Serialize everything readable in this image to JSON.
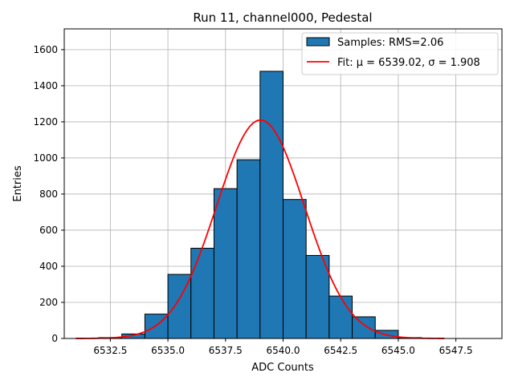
{
  "chart_data": {
    "type": "bar",
    "title": "Run 11, channel000, Pedestal",
    "xlabel": "ADC Counts",
    "ylabel": "Entries",
    "xlim": [
      6530.5,
      6549.5
    ],
    "ylim": [
      0,
      1715
    ],
    "xticks": [
      6532.5,
      6535.0,
      6537.5,
      6540.0,
      6542.5,
      6545.0,
      6547.5
    ],
    "xtick_labels": [
      "6532.5",
      "6535.0",
      "6537.5",
      "6540.0",
      "6542.5",
      "6545.0",
      "6547.5"
    ],
    "yticks": [
      0,
      200,
      400,
      600,
      800,
      1000,
      1200,
      1400,
      1600
    ],
    "ytick_labels": [
      "0",
      "200",
      "400",
      "600",
      "800",
      "1000",
      "1200",
      "1400",
      "1600"
    ],
    "grid": true,
    "legend_position": "top-right",
    "bins": {
      "edges": [
        6532,
        6533,
        6534,
        6535,
        6536,
        6537,
        6538,
        6539,
        6540,
        6541,
        6542,
        6543,
        6544,
        6545,
        6546
      ],
      "counts": [
        5,
        25,
        135,
        355,
        500,
        830,
        990,
        1480,
        770,
        460,
        235,
        120,
        45,
        5
      ]
    },
    "fit": {
      "mu": 6539.02,
      "sigma": 1.908,
      "amplitude": 1210,
      "x_range": [
        6531.0,
        6547.0
      ]
    },
    "series": [
      {
        "name": "Samples: RMS=2.06",
        "type": "histogram",
        "color": "#1f77b4",
        "edgecolor": "#000000"
      },
      {
        "name": "Fit: μ = 6539.02, σ = 1.908",
        "type": "line",
        "color": "#ff0000"
      }
    ]
  }
}
